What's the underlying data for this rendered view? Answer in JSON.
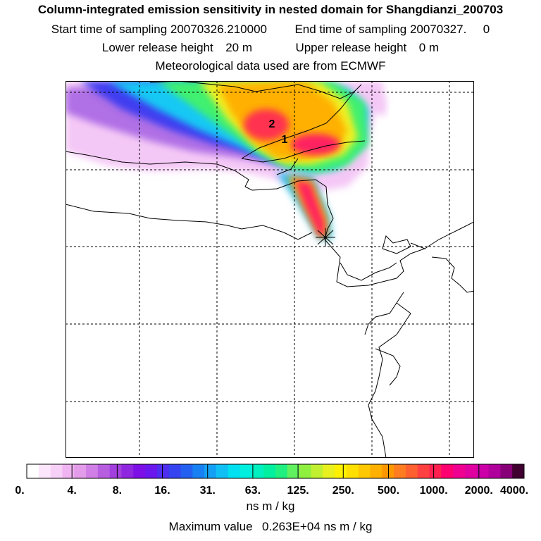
{
  "header": {
    "title": "Column-integrated emission sensitivity in nested domain for Shangdianzi_200703",
    "start_label": "Start time of sampling",
    "start_value": "20070326.210000",
    "end_label": "End time of sampling",
    "end_value": "20070327.",
    "end_extra": "0",
    "lower_label": "Lower release height",
    "lower_value": "20 m",
    "upper_label": "Upper release height",
    "upper_value": "0 m",
    "met_text": "Meteorological data used are from ECMWF"
  },
  "map": {
    "labels": [
      "2",
      "1"
    ]
  },
  "legend": {
    "ticks": [
      "0.",
      "4.",
      "8.",
      "16.",
      "31.",
      "63.",
      "125.",
      "250.",
      "500.",
      "1000.",
      "2000.",
      "4000."
    ],
    "colors": [
      "#ffffff",
      "#fbe6fb",
      "#f7d0f7",
      "#f0b4f2",
      "#e39cea",
      "#cf7fe6",
      "#b75ee0",
      "#a23fde",
      "#8f26e0",
      "#7c10e6",
      "#6a18ee",
      "#4f2ef0",
      "#3544f0",
      "#2360f0",
      "#1780f2",
      "#14a0f4",
      "#10c0f4",
      "#00e0f0",
      "#00f0e0",
      "#00f0c0",
      "#00f0a0",
      "#20f080",
      "#60f060",
      "#90f040",
      "#c0f030",
      "#e8f020",
      "#fff000",
      "#ffe000",
      "#ffc800",
      "#ffb000",
      "#ff9800",
      "#ff7c20",
      "#ff6030",
      "#ff4040",
      "#ff2050",
      "#ff0070",
      "#f00090",
      "#e000a0",
      "#cc00a8",
      "#b0009c",
      "#880078",
      "#400030"
    ],
    "units": "ns m / kg",
    "max_label": "Maximum value",
    "max_value": "0.263E+04 ns m / kg"
  }
}
